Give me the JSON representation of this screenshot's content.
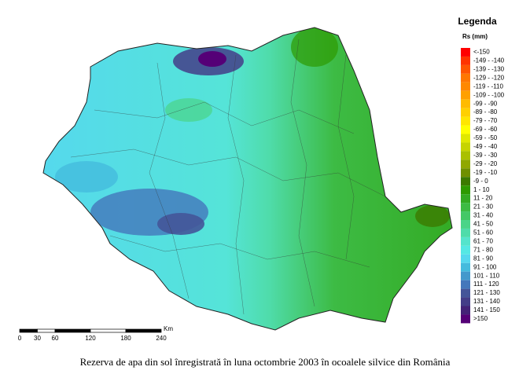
{
  "legend": {
    "title": "Legenda",
    "subtitle": "Rs (mm)",
    "items": [
      {
        "label": "<-150",
        "color": "#ff0000"
      },
      {
        "label": "-149 - -140",
        "color": "#ff3300"
      },
      {
        "label": "-139 - -130",
        "color": "#ff5500"
      },
      {
        "label": "-129 - -120",
        "color": "#ff7700"
      },
      {
        "label": "-119 - -110",
        "color": "#ff8800"
      },
      {
        "label": "-109 - -100",
        "color": "#ffa000"
      },
      {
        "label": "-99 - -90",
        "color": "#ffbb00"
      },
      {
        "label": "-89 - -80",
        "color": "#ffd000"
      },
      {
        "label": "-79 - -70",
        "color": "#ffe600"
      },
      {
        "label": "-69 - -60",
        "color": "#ffff00"
      },
      {
        "label": "-59 - -50",
        "color": "#e0e800"
      },
      {
        "label": "-49 - -40",
        "color": "#c6d400"
      },
      {
        "label": "-39 - -30",
        "color": "#aac000"
      },
      {
        "label": "-29 - -20",
        "color": "#90a800"
      },
      {
        "label": "-19 - -10",
        "color": "#6f9000"
      },
      {
        "label": "-9 - 0",
        "color": "#3c7a00"
      },
      {
        "label": "1 - 10",
        "color": "#2e9a00"
      },
      {
        "label": "11 - 20",
        "color": "#33aa22"
      },
      {
        "label": "21 - 30",
        "color": "#3dbb44"
      },
      {
        "label": "31 - 40",
        "color": "#44c866"
      },
      {
        "label": "41 - 50",
        "color": "#4ad488"
      },
      {
        "label": "51 - 60",
        "color": "#4fdcaa"
      },
      {
        "label": "61 - 70",
        "color": "#55e4cc"
      },
      {
        "label": "71 - 80",
        "color": "#55e8e4"
      },
      {
        "label": "81 - 90",
        "color": "#55d8ee"
      },
      {
        "label": "91 - 100",
        "color": "#44bbdd"
      },
      {
        "label": "101 - 110",
        "color": "#4499cc"
      },
      {
        "label": "111 - 120",
        "color": "#4477bb"
      },
      {
        "label": "121 - 130",
        "color": "#445599"
      },
      {
        "label": "131 - 140",
        "color": "#443d88"
      },
      {
        "label": "141 - 150",
        "color": "#442277"
      },
      {
        "label": ">150",
        "color": "#550077"
      }
    ]
  },
  "scale_bar": {
    "ticks": [
      0,
      30,
      60,
      120,
      180,
      240
    ],
    "unit": "Km"
  },
  "caption": "Rezerva de apa din sol înregistrată în luna octombrie 2003 în ocoalele silvice din România"
}
